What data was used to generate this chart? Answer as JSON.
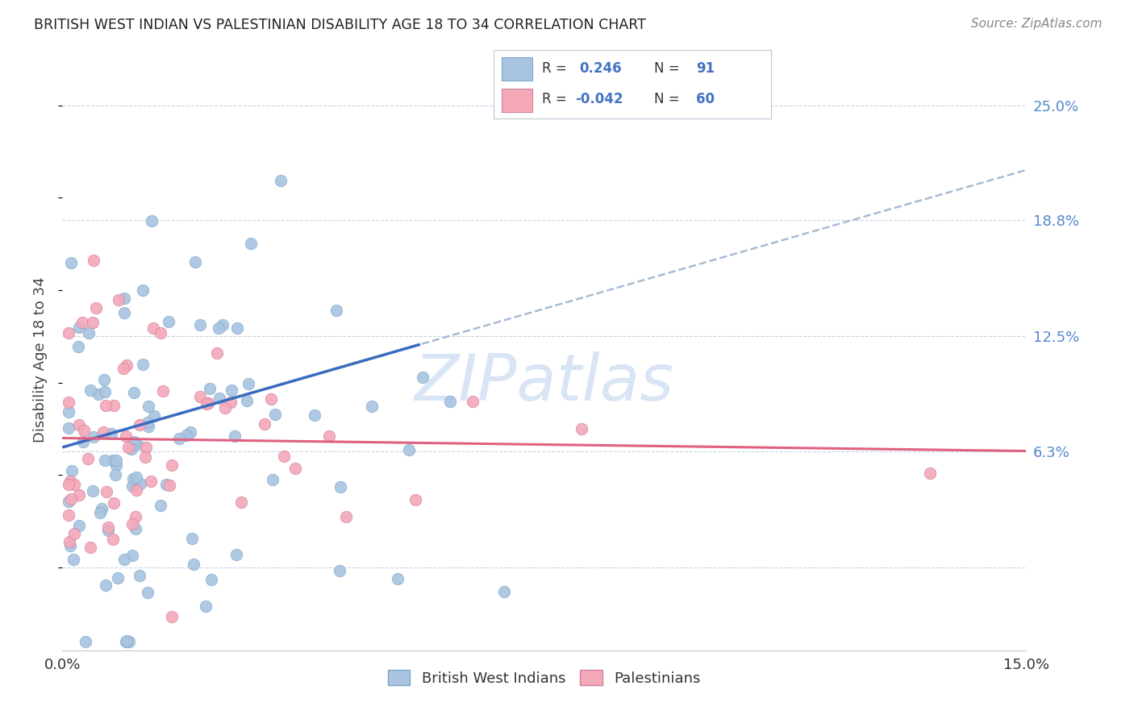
{
  "title": "BRITISH WEST INDIAN VS PALESTINIAN DISABILITY AGE 18 TO 34 CORRELATION CHART",
  "source": "Source: ZipAtlas.com",
  "ylabel": "Disability Age 18 to 34",
  "legend_label1": "British West Indians",
  "legend_label2": "Palestinians",
  "r1": 0.246,
  "n1": 91,
  "r2": -0.042,
  "n2": 60,
  "ytick_vals": [
    0.0,
    0.063,
    0.125,
    0.188,
    0.25
  ],
  "ytick_labels": [
    "",
    "6.3%",
    "12.5%",
    "18.8%",
    "25.0%"
  ],
  "xmin": 0.0,
  "xmax": 0.15,
  "ymin": -0.045,
  "ymax": 0.27,
  "color_blue": "#a8c4e0",
  "color_pink": "#f4a8b8",
  "color_blue_line": "#3a6bbf",
  "color_pink_line": "#e06080",
  "color_dashed": "#9ab0cc",
  "color_grid": "#c8d4e4",
  "watermark_color": "#c0d4ee",
  "watermark_alpha": 0.6
}
